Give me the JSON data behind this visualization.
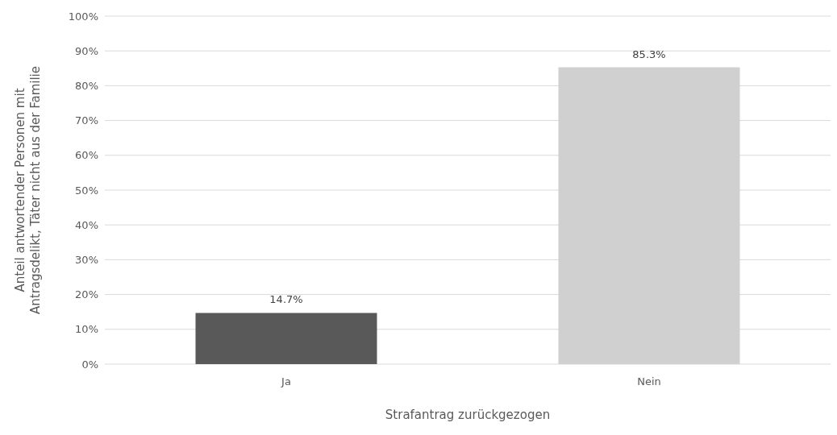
{
  "chart_data": {
    "type": "bar",
    "categories": [
      "Ja",
      "Nein"
    ],
    "values": [
      14.7,
      85.3
    ],
    "colors": [
      "#595959",
      "#d0d0d0"
    ],
    "value_labels": [
      "14.7%",
      "85.3%"
    ],
    "xlabel": "Strafantrag zurückgezogen",
    "ylabel": "Anteil antwortender Personen mit\nAntragsdelikt, Täter nicht aus der Familie",
    "ylim": [
      0,
      100
    ],
    "yticks": [
      {
        "value": 0,
        "label": "0%"
      },
      {
        "value": 10,
        "label": "10%"
      },
      {
        "value": 20,
        "label": "20%"
      },
      {
        "value": 30,
        "label": "30%"
      },
      {
        "value": 40,
        "label": "40%"
      },
      {
        "value": 50,
        "label": "50%"
      },
      {
        "value": 60,
        "label": "60%"
      },
      {
        "value": 70,
        "label": "70%"
      },
      {
        "value": 80,
        "label": "80%"
      },
      {
        "value": 90,
        "label": "90%"
      },
      {
        "value": 100,
        "label": "100%"
      }
    ],
    "grid": "y"
  }
}
